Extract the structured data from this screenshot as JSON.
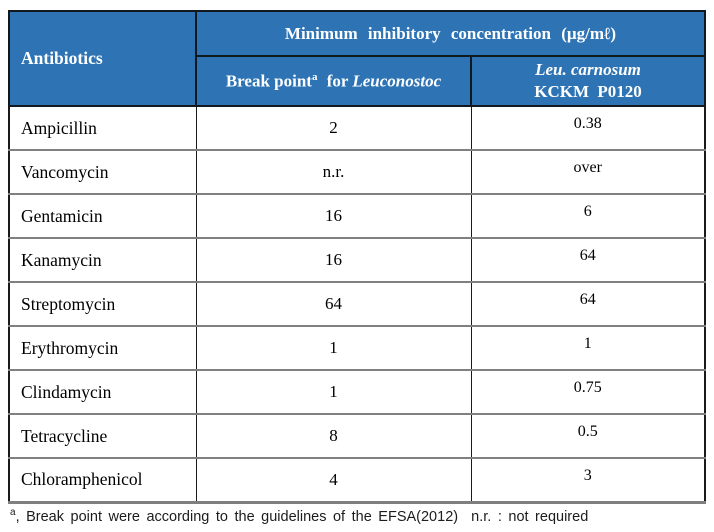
{
  "colors": {
    "header_bg": "#2E74B5",
    "header_text": "#FFFFFF",
    "row_divider": "#808080",
    "outer_border": "#1A1A1A",
    "body_text": "#000000"
  },
  "table": {
    "header": {
      "antibiotics": "Antibiotics",
      "mic_title": "Minimum inhibitory concentration (µg/mℓ)",
      "breakpoint": {
        "prefix": "Break point",
        "sup": "a",
        "mid": " for ",
        "species": "Leuconostoc"
      },
      "strain": {
        "line1": "Leu. carnosum",
        "line2": "KCKM P0120"
      }
    },
    "rows": [
      {
        "name": "Ampicillin",
        "breakpoint": "2",
        "mic": "0.38"
      },
      {
        "name": "Vancomycin",
        "breakpoint": "n.r.",
        "mic": "over"
      },
      {
        "name": "Gentamicin",
        "breakpoint": "16",
        "mic": "6"
      },
      {
        "name": "Kanamycin",
        "breakpoint": "16",
        "mic": "64"
      },
      {
        "name": "Streptomycin",
        "breakpoint": "64",
        "mic": "64"
      },
      {
        "name": "Erythromycin",
        "breakpoint": "1",
        "mic": "1"
      },
      {
        "name": "Clindamycin",
        "breakpoint": "1",
        "mic": "0.75"
      },
      {
        "name": "Tetracycline",
        "breakpoint": "8",
        "mic": "0.5"
      },
      {
        "name": "Chloramphenicol",
        "breakpoint": "4",
        "mic": "3"
      }
    ]
  },
  "footnote": {
    "marker": "a",
    "text": ", Break point were according to the guidelines of the EFSA(2012)  n.r. : not required"
  }
}
